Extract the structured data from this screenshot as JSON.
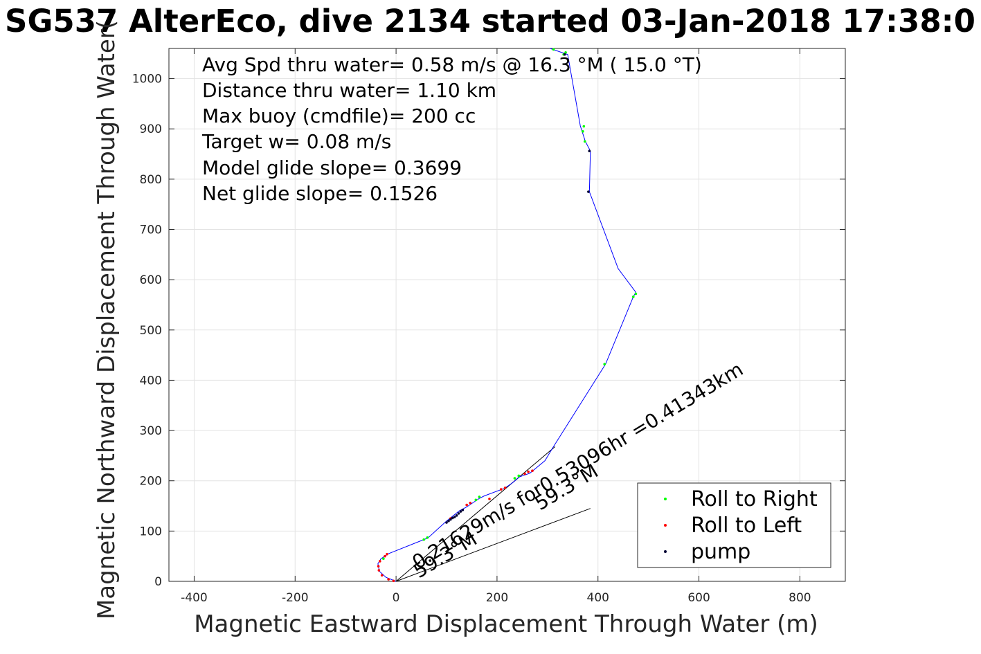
{
  "chart_data": {
    "type": "line",
    "title": "SG537 AlterEco, dive 2134 started 03-Jan-2018 17:38:0",
    "xlabel": "Magnetic Eastward Displacement Through Water (m)",
    "ylabel": "Magnetic Northward Displacement Through Water(",
    "xlim": [
      -450,
      890
    ],
    "ylim": [
      0,
      1060
    ],
    "xticks": [
      -400,
      -200,
      0,
      200,
      400,
      600,
      800
    ],
    "xtick_labels": [
      "-400",
      "-200",
      "0",
      "200",
      "400",
      "600",
      "800"
    ],
    "yticks": [
      0,
      100,
      200,
      300,
      400,
      500,
      600,
      700,
      800,
      900,
      1000
    ],
    "ytick_labels": [
      "0",
      "100",
      "200",
      "300",
      "400",
      "500",
      "600",
      "700",
      "800",
      "900",
      "1000"
    ],
    "grid": true,
    "legend_position": "bottom-right",
    "annotations": [
      "Avg Spd thru water=  0.58 m/s @  16.3 °M ( 15.0 °T)",
      "Distance thru water=  1.10 km",
      "Max buoy (cmdfile)= 200 cc",
      "Target w= 0.08 m/s",
      "Model glide slope= 0.3699",
      "Net glide slope= 0.1526"
    ],
    "rotated_labels": [
      {
        "text": "0.21629m/s for0.53096hr =0.41343km",
        "angle_deg": -31
      },
      {
        "text": "59.3°M",
        "angle_deg": -31
      },
      {
        "text": "59.3°M",
        "angle_deg": -31
      }
    ],
    "track": {
      "color": "#0000ff",
      "x": [
        0,
        -20,
        -33,
        -36,
        -30,
        -15,
        60,
        65,
        100,
        125,
        140,
        165,
        175,
        215,
        232,
        245,
        265,
        295,
        310,
        415,
        470,
        475,
        440,
        383,
        385,
        375,
        365,
        340,
        305
      ],
      "y": [
        0,
        8,
        20,
        35,
        45,
        55,
        85,
        88,
        120,
        140,
        148,
        165,
        170,
        185,
        197,
        208,
        215,
        240,
        265,
        432,
        566,
        575,
        622,
        775,
        856,
        875,
        906,
        1048,
        1060
      ]
    },
    "reference_lines": [
      {
        "color": "#000000",
        "x": [
          0,
          315
        ],
        "y": [
          0,
          268
        ]
      },
      {
        "color": "#000000",
        "x": [
          0,
          385
        ],
        "y": [
          0,
          145
        ]
      }
    ],
    "series": [
      {
        "name": "Roll to Right",
        "color": "#00ff00",
        "x": [
          -25,
          55,
          62,
          158,
          165,
          235,
          243,
          312,
          370,
          372,
          374,
          470,
          475,
          413,
          332,
          336
        ],
        "y": [
          45,
          83,
          87,
          162,
          168,
          205,
          210,
          1058,
          895,
          905,
          875,
          566,
          572,
          432,
          1048,
          1052
        ]
      },
      {
        "name": "Roll to Left",
        "color": "#ff0000",
        "x": [
          -5,
          -15,
          -28,
          -34,
          -35,
          -32,
          -22,
          -18,
          108,
          140,
          147,
          185,
          208,
          216,
          255,
          262,
          270
        ],
        "y": [
          1,
          4,
          12,
          22,
          30,
          40,
          50,
          54,
          125,
          152,
          156,
          164,
          183,
          186,
          214,
          218,
          220
        ]
      },
      {
        "name": "pump",
        "color": "#000033",
        "x": [
          100,
          104,
          108,
          112,
          116,
          120,
          124,
          128,
          132,
          383,
          381,
          334
        ],
        "y": [
          117,
          120,
          123,
          126,
          128,
          131,
          135,
          139,
          142,
          856,
          775,
          1048
        ]
      }
    ]
  }
}
